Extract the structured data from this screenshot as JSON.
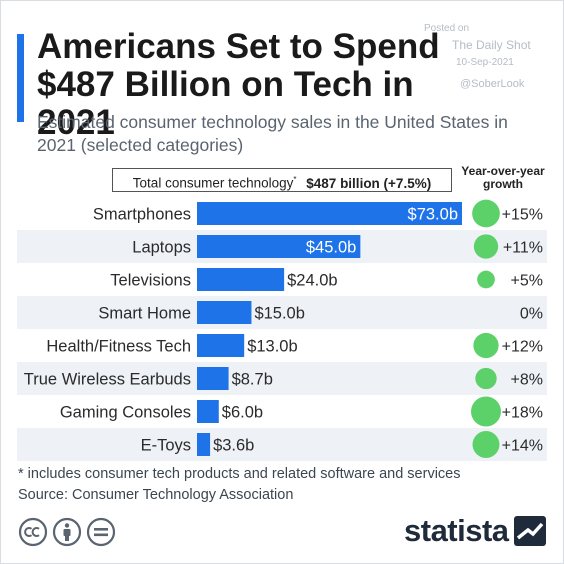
{
  "header": {
    "title": "Americans Set to Spend $487 Billion on Tech in 2021",
    "subtitle": "Estimated consumer technology sales in the United States in 2021 (selected categories)"
  },
  "watermark": {
    "line1": "Posted on",
    "line2": "The Daily Shot",
    "line3": "10-Sep-2021",
    "line4": "@SoberLook"
  },
  "total": {
    "label": "Total consumer technology",
    "marker": "*",
    "value": "$487 billion (+7.5%)"
  },
  "yoy_header": "Year-over-year growth",
  "chart_data": {
    "type": "bar",
    "orientation": "horizontal",
    "categories": [
      "Smartphones",
      "Laptops",
      "Televisions",
      "Smart Home",
      "Health/Fitness Tech",
      "True Wireless Earbuds",
      "Gaming Consoles",
      "E-Toys"
    ],
    "values": [
      73.0,
      45.0,
      24.0,
      15.0,
      13.0,
      8.7,
      6.0,
      3.6
    ],
    "value_labels": [
      "$73.0b",
      "$45.0b",
      "$24.0b",
      "$15.0b",
      "$13.0b",
      "$8.7b",
      "$6.0b",
      "$3.6b"
    ],
    "growth": [
      15,
      11,
      5,
      0,
      12,
      8,
      18,
      14
    ],
    "growth_labels": [
      "+15%",
      "+11%",
      "+5%",
      "0%",
      "+12%",
      "+8%",
      "+18%",
      "+14%"
    ],
    "unit": "billion USD",
    "xlim": [
      0,
      73
    ],
    "grid": false,
    "colors": {
      "bar": "#1e73e8",
      "bubble": "#5cd16a",
      "stripe": "#eef1f6"
    }
  },
  "footer": {
    "footnote": "* includes consumer tech products and related software and services",
    "source": "Source: Consumer Technology Association",
    "logo": "statista"
  }
}
